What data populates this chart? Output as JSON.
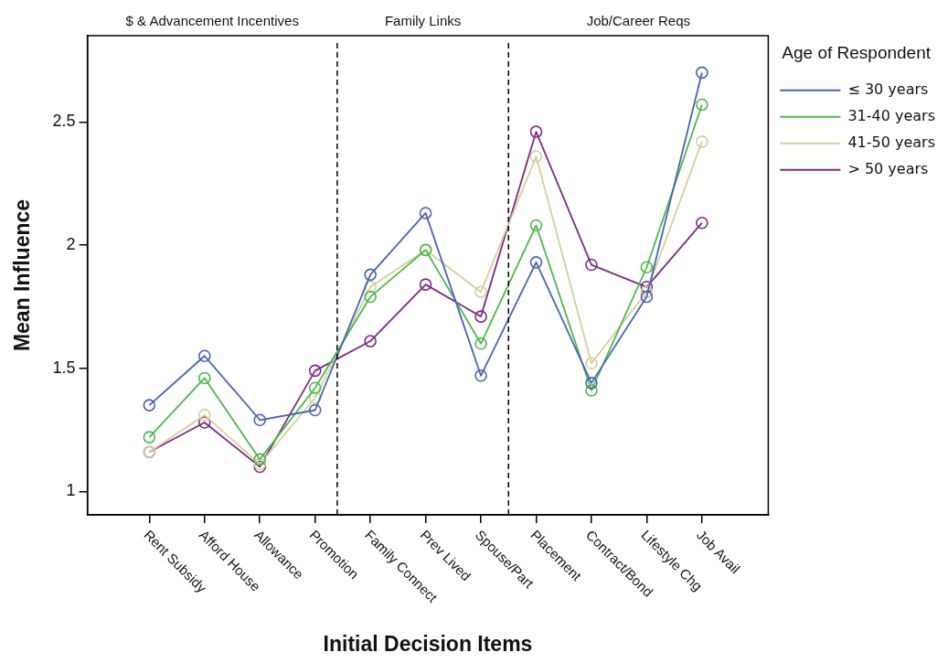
{
  "chart_data": {
    "type": "line",
    "xlabel": "Initial Decision Items",
    "ylabel": "Mean Influence",
    "legend_title": "Age of Respondent",
    "categories": [
      "Rent Subsidy",
      "Afford House",
      "Allowance",
      "Promotion",
      "Family Connect",
      "Prev Lived",
      "Spouse/Part",
      "Placement",
      "Contract/Bond",
      "Lifestyle Chg",
      "Job Avail"
    ],
    "series": [
      {
        "name": "≤ 30 years",
        "color": "#4a62b0",
        "values": [
          1.35,
          1.55,
          1.29,
          1.33,
          1.88,
          2.13,
          1.47,
          1.93,
          1.44,
          1.79,
          2.7
        ]
      },
      {
        "name": "31-40 years",
        "color": "#4bb84a",
        "values": [
          1.22,
          1.46,
          1.13,
          1.42,
          1.79,
          1.98,
          1.6,
          2.08,
          1.41,
          1.91,
          2.57
        ]
      },
      {
        "name": "41-50 years",
        "color": "#d4cf9c",
        "values": [
          1.16,
          1.31,
          1.11,
          1.38,
          1.83,
          1.98,
          1.81,
          2.36,
          1.52,
          1.81,
          2.42
        ]
      },
      {
        "name": "> 50 years",
        "color": "#7d2a80",
        "values": [
          1.16,
          1.28,
          1.1,
          1.49,
          1.61,
          1.84,
          1.71,
          2.46,
          1.92,
          1.83,
          2.09
        ]
      }
    ],
    "ylim": [
      0.905,
      2.85
    ],
    "yticks": [
      1,
      1.5,
      2,
      2.5
    ],
    "annotations": [
      "$ & Advancement Incentives",
      "Family Links",
      "Job/Career Reqs"
    ],
    "grid": false,
    "legend": "right",
    "marker": "circle",
    "line_style": "solid"
  }
}
